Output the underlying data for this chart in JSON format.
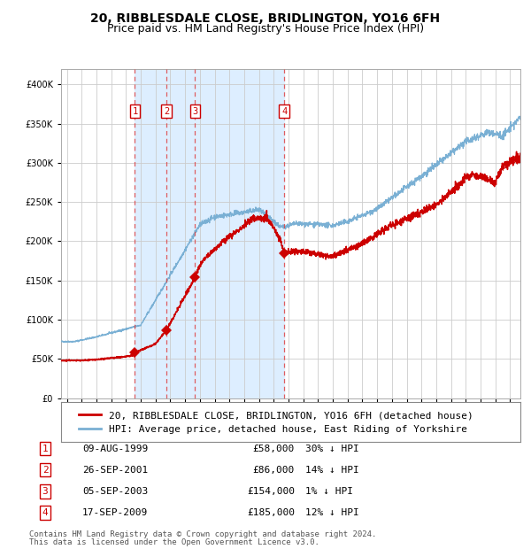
{
  "title": "20, RIBBLESDALE CLOSE, BRIDLINGTON, YO16 6FH",
  "subtitle": "Price paid vs. HM Land Registry's House Price Index (HPI)",
  "legend_red": "20, RIBBLESDALE CLOSE, BRIDLINGTON, YO16 6FH (detached house)",
  "legend_blue": "HPI: Average price, detached house, East Riding of Yorkshire",
  "footer1": "Contains HM Land Registry data © Crown copyright and database right 2024.",
  "footer2": "This data is licensed under the Open Government Licence v3.0.",
  "transactions": [
    {
      "num": 1,
      "date": "09-AUG-1999",
      "year": 1999.6,
      "price": 58000,
      "pct": "30% ↓ HPI"
    },
    {
      "num": 2,
      "date": "26-SEP-2001",
      "year": 2001.73,
      "price": 86000,
      "pct": "14% ↓ HPI"
    },
    {
      "num": 3,
      "date": "05-SEP-2003",
      "year": 2003.67,
      "price": 154000,
      "pct": "1% ↓ HPI"
    },
    {
      "num": 4,
      "date": "17-SEP-2009",
      "year": 2009.71,
      "price": 185000,
      "pct": "12% ↓ HPI"
    }
  ],
  "shaded_region_start": 1999.6,
  "shaded_region_end": 2009.71,
  "ylim": [
    0,
    420000
  ],
  "xlim_start": 1994.6,
  "xlim_end": 2025.7,
  "red_color": "#cc0000",
  "blue_color": "#7ab0d4",
  "shade_color": "#ddeeff",
  "grid_color": "#cccccc",
  "dashed_color": "#dd4444",
  "background_color": "#ffffff",
  "title_fontsize": 10,
  "subtitle_fontsize": 9,
  "tick_fontsize": 7,
  "legend_fontsize": 8,
  "table_fontsize": 8,
  "footer_fontsize": 6.5
}
